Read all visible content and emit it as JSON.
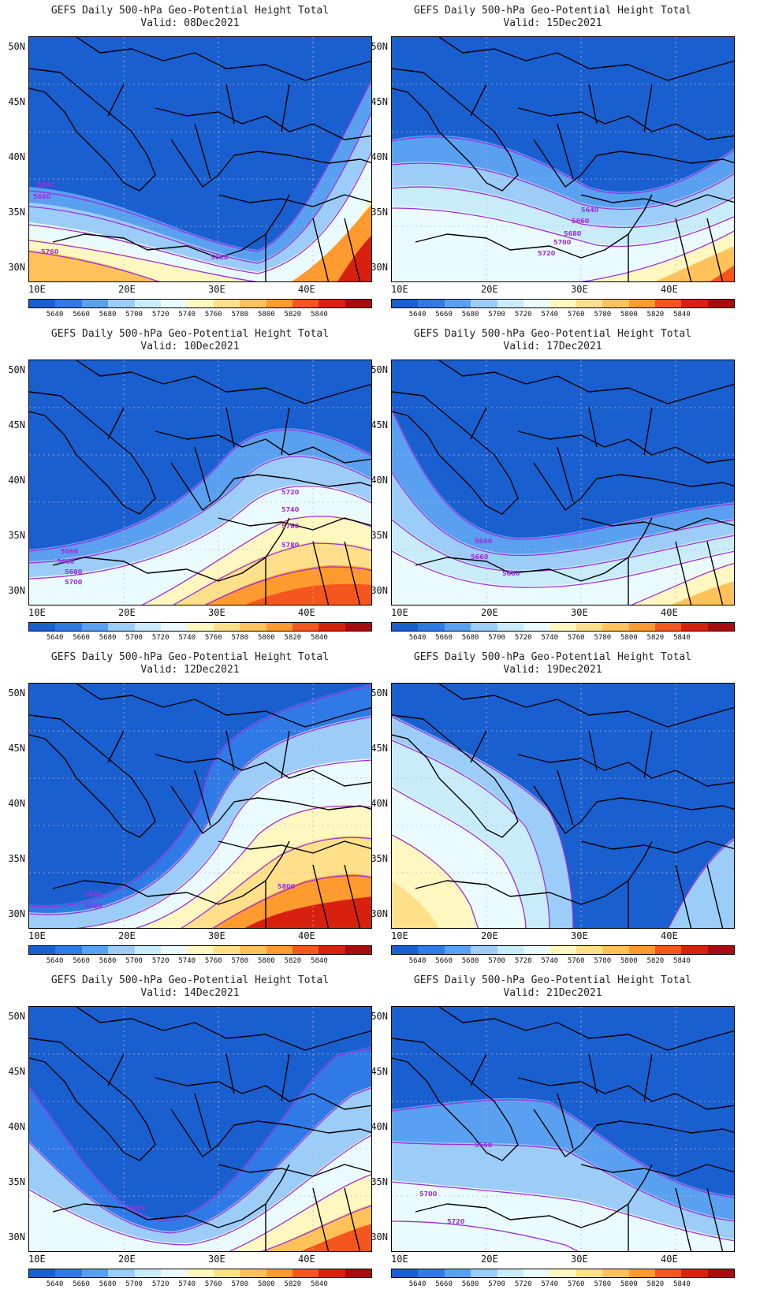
{
  "title_line1": "GEFS Daily 500-hPa Geo-Potential Height Total",
  "lat_labels": [
    "50N",
    "45N",
    "40N",
    "35N",
    "30N"
  ],
  "lon_labels": [
    "10E",
    "20E",
    "30E",
    "40E"
  ],
  "colorbar": {
    "colors": [
      "#1a5fd0",
      "#2f7ae6",
      "#5aa0f0",
      "#9ccdf8",
      "#c8ecfa",
      "#eafbff",
      "#fff7c0",
      "#ffe08a",
      "#ffc25a",
      "#ff9a2e",
      "#f5561e",
      "#d8200f",
      "#a90c0c"
    ],
    "labels": [
      "5640",
      "5660",
      "5680",
      "5700",
      "5720",
      "5740",
      "5760",
      "5780",
      "5800",
      "5820",
      "5840"
    ]
  },
  "contour_color": "#9b2fe0",
  "panels": [
    {
      "valid": "Valid: 08Dec2021",
      "labels": [
        "5640",
        "5660",
        "5760",
        "5680"
      ]
    },
    {
      "valid": "Valid: 15Dec2021",
      "labels": [
        "5640",
        "5660",
        "5680",
        "5700",
        "5720"
      ]
    },
    {
      "valid": "Valid: 10Dec2021",
      "labels": [
        "5720",
        "5740",
        "5760",
        "5780",
        "5660",
        "5660",
        "5680",
        "5700"
      ]
    },
    {
      "valid": "Valid: 17Dec2021",
      "labels": [
        "5640",
        "5660",
        "5680"
      ]
    },
    {
      "valid": "Valid: 12Dec2021",
      "labels": [
        "5660",
        "5680",
        "5800"
      ]
    },
    {
      "valid": "Valid: 19Dec2021",
      "labels": []
    },
    {
      "valid": "Valid: 14Dec2021",
      "labels": [
        "5680"
      ]
    },
    {
      "valid": "Valid: 21Dec2021",
      "labels": [
        "5660",
        "5700",
        "5720"
      ]
    }
  ]
}
